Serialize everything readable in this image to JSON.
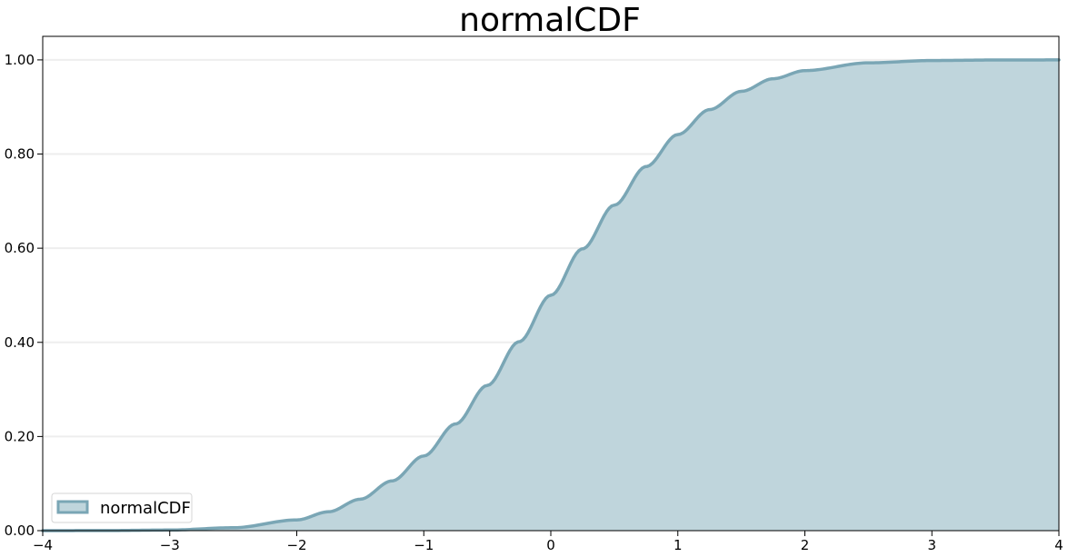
{
  "chart_data": {
    "type": "area",
    "title": "normalCDF",
    "xlabel": "",
    "ylabel": "",
    "xlim": [
      -4,
      4
    ],
    "ylim": [
      0,
      1.05
    ],
    "x_ticks": [
      -4,
      -3,
      -2,
      -1,
      0,
      1,
      2,
      3,
      4
    ],
    "x_tick_labels": [
      "−4",
      "−3",
      "−2",
      "−1",
      "0",
      "1",
      "2",
      "3",
      "4"
    ],
    "y_ticks": [
      0,
      0.2,
      0.4,
      0.6,
      0.8,
      1.0
    ],
    "y_tick_labels": [
      "0.00",
      "0.20",
      "0.40",
      "0.60",
      "0.80",
      "1.00"
    ],
    "grid": "horizontal",
    "legend": {
      "position": "lower-left",
      "entries": [
        "normalCDF"
      ]
    },
    "series": [
      {
        "name": "normalCDF",
        "fill_color": "#bfd5dc",
        "line_color": "#7aa6b5",
        "x": [
          -4,
          -3.5,
          -3,
          -2.5,
          -2,
          -1.75,
          -1.5,
          -1.25,
          -1,
          -0.75,
          -0.5,
          -0.25,
          0,
          0.25,
          0.5,
          0.75,
          1,
          1.25,
          1.5,
          1.75,
          2,
          2.5,
          3,
          3.5,
          4
        ],
        "y": [
          3e-05,
          0.00023,
          0.00135,
          0.00621,
          0.02275,
          0.04006,
          0.06681,
          0.10565,
          0.15866,
          0.22663,
          0.30854,
          0.40129,
          0.5,
          0.59871,
          0.69146,
          0.77337,
          0.84134,
          0.89435,
          0.93319,
          0.95994,
          0.97725,
          0.99379,
          0.99865,
          0.99977,
          0.99997
        ]
      }
    ]
  }
}
